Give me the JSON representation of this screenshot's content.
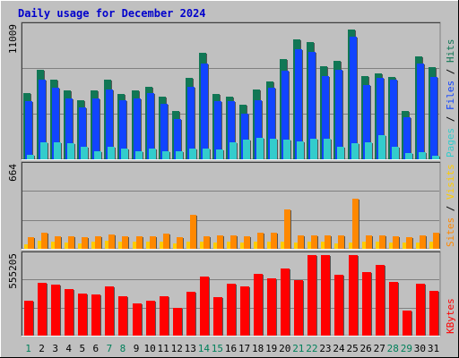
{
  "chart_data": {
    "type": "bar",
    "title": "Daily usage for December 2024",
    "days": [
      "1",
      "2",
      "3",
      "4",
      "5",
      "6",
      "7",
      "8",
      "9",
      "10",
      "11",
      "12",
      "13",
      "14",
      "15",
      "16",
      "17",
      "18",
      "19",
      "20",
      "21",
      "22",
      "23",
      "24",
      "25",
      "26",
      "27",
      "28",
      "29",
      "30",
      "31"
    ],
    "weekend_days": [
      "1",
      "7",
      "8",
      "14",
      "15",
      "21",
      "22",
      "28",
      "29"
    ],
    "panels": [
      {
        "id": "requests",
        "max_label": "11009",
        "ylim": [
          0,
          11009
        ],
        "legend": [
          {
            "name": "Pages",
            "color": "#33cccc"
          },
          {
            "name": "Files",
            "color": "#1144ff"
          },
          {
            "name": "Hits",
            "color": "#117755"
          }
        ],
        "series": [
          {
            "name": "Hits",
            "color": "#117755",
            "values": [
              5500,
              7400,
              6600,
              5700,
              4900,
              5700,
              6600,
              5400,
              5700,
              6000,
              5200,
              4000,
              6700,
              8800,
              5400,
              5200,
              4500,
              5800,
              6400,
              8300,
              9900,
              9700,
              7700,
              8100,
              10700,
              6900,
              7100,
              6800,
              4000,
              8500,
              7600
            ]
          },
          {
            "name": "Files",
            "color": "#1144ff",
            "values": [
              4800,
              6600,
              5900,
              5000,
              4300,
              5000,
              5800,
              4900,
              5000,
              5500,
              4600,
              3300,
              6000,
              7900,
              4800,
              4800,
              3800,
              4900,
              5900,
              7300,
              9100,
              8900,
              6900,
              7400,
              10100,
              6100,
              6700,
              6600,
              3500,
              7900,
              6800
            ]
          },
          {
            "name": "Pages",
            "color": "#33cccc",
            "values": [
              400,
              1400,
              1400,
              1300,
              1000,
              700,
              1000,
              900,
              700,
              900,
              700,
              700,
              900,
              900,
              800,
              1400,
              1600,
              1800,
              1700,
              1600,
              1500,
              1700,
              1700,
              1000,
              1300,
              1400,
              2000,
              1000,
              500,
              600,
              300
            ]
          }
        ]
      },
      {
        "id": "visits",
        "max_label": "664",
        "ylim": [
          0,
          664
        ],
        "legend": [
          {
            "name": "Sites",
            "color": "#ff8800"
          },
          {
            "name": "Visits",
            "color": "#ffcc00"
          }
        ],
        "series": [
          {
            "name": "Visits",
            "color": "#ffcc00",
            "values": [
              38,
              62,
              60,
              51,
              43,
              55,
              62,
              57,
              55,
              58,
              55,
              45,
              58,
              55,
              48,
              57,
              53,
              58,
              55,
              60,
              52,
              55,
              58,
              45,
              53,
              60,
              58,
              48,
              48,
              52,
              60
            ]
          },
          {
            "name": "Sites",
            "color": "#ff8800",
            "values": [
              92,
              130,
              100,
              102,
              92,
              100,
              112,
              100,
              100,
              102,
              122,
              95,
              268,
              100,
              110,
              110,
              100,
              125,
              128,
              312,
              110,
              110,
              105,
              110,
              400,
              105,
              110,
              103,
              95,
              110,
              128
            ]
          }
        ]
      },
      {
        "id": "kbytes",
        "max_label": "555205",
        "ylim": [
          0,
          555205
        ],
        "legend": [
          {
            "name": "KBytes",
            "color": "#ff0000"
          }
        ],
        "series": [
          {
            "name": "KBytes",
            "color": "#ff0000",
            "values": [
              240000,
              365000,
              350000,
              320000,
              290000,
              285000,
              340000,
              270000,
              225000,
              240000,
              270000,
              190000,
              305000,
              410000,
              265000,
              355000,
              340000,
              425000,
              395000,
              460000,
              380000,
              555000,
              555000,
              420000,
              555000,
              435000,
              485000,
              370000,
              170000,
              355000,
              310000
            ]
          }
        ]
      }
    ]
  }
}
